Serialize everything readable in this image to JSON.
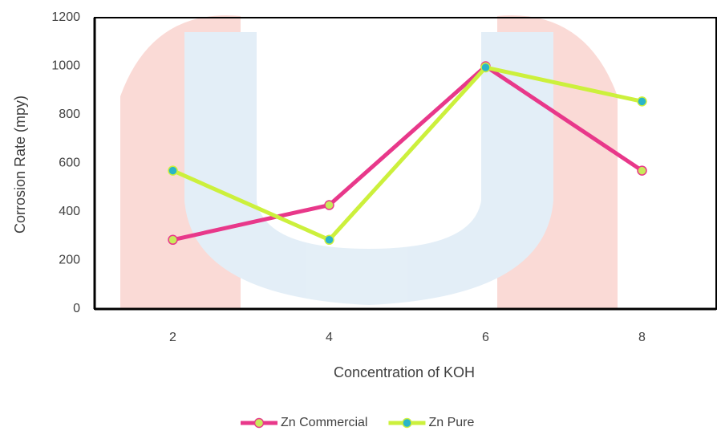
{
  "chart_data": {
    "type": "line",
    "categories": [
      "2",
      "4",
      "6",
      "8"
    ],
    "series": [
      {
        "name": "Zn Commercial",
        "color": "#e8388a",
        "marker_color": "#c8ea5a",
        "values": [
          285,
          428,
          1000,
          570
        ]
      },
      {
        "name": "Zn Pure",
        "color": "#ccf03c",
        "marker_color": "#2ab5c8",
        "values": [
          570,
          285,
          995,
          855
        ]
      }
    ],
    "xlabel": "Concentration of KOH",
    "ylabel": "Corrosion Rate (mpy)",
    "ylim": [
      0,
      1200
    ],
    "yticks": [
      0,
      200,
      400,
      600,
      800,
      1000,
      1200
    ],
    "grid": false,
    "legend": "bottom"
  }
}
